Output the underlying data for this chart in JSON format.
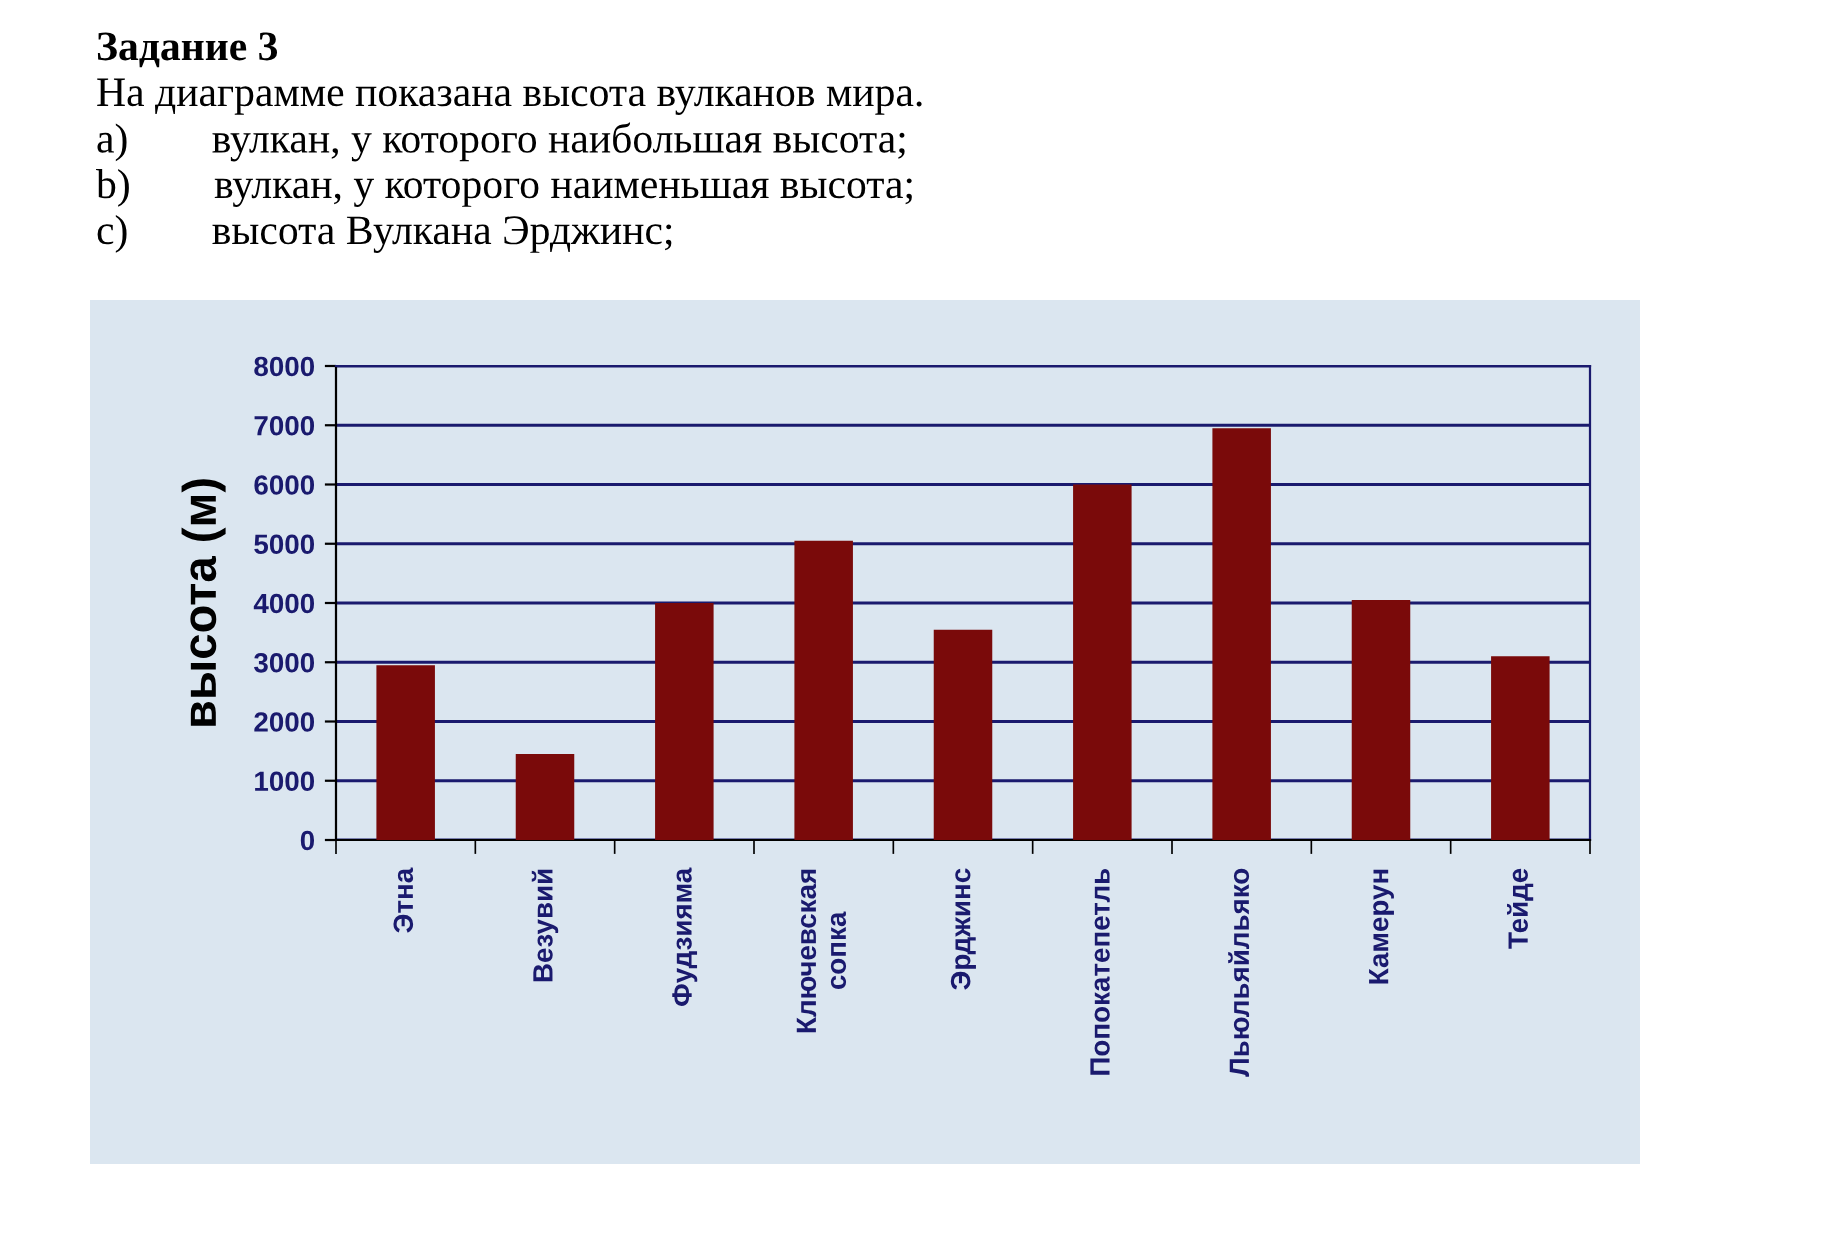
{
  "chart_data": {
    "type": "bar",
    "title": "Задание 3",
    "subtitle": "На диаграмме показана высота вулканов мира.",
    "annotations": [
      "a)  вулкан, у которого наибольшая высота;",
      "b)  вулкан, у которого наименьшая высота;",
      "c)  высота Вулкана Эрджинс;"
    ],
    "ylabel": "высота (м)",
    "categories": [
      "Этна",
      "Везувий",
      "Фудзияма",
      "Ключевская\nсопка",
      "Эрджинс",
      "Попокатепетль",
      "Льюльяйльяко",
      "Камерун",
      "Тейде"
    ],
    "values": [
      2950,
      1450,
      4000,
      5050,
      3550,
      6000,
      6950,
      4050,
      3100
    ],
    "color": "#7a0a0a",
    "ylim": [
      0,
      8000
    ],
    "yticks": [
      0,
      1000,
      2000,
      3000,
      4000,
      5000,
      6000,
      7000,
      8000
    ],
    "grid": "y",
    "legend": false
  }
}
